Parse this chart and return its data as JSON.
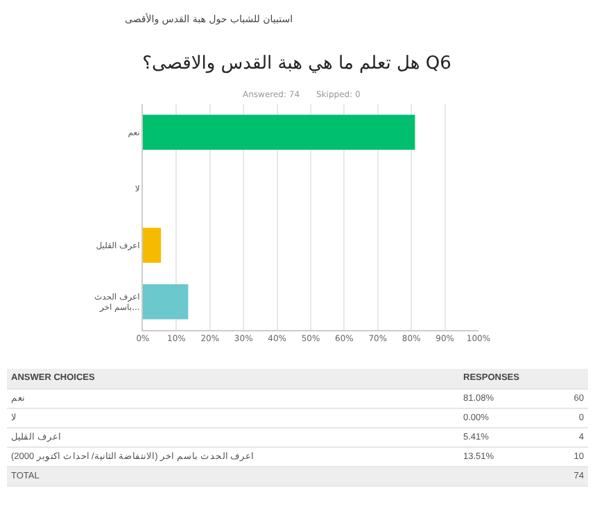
{
  "chart_data": {
    "type": "bar",
    "orientation": "horizontal",
    "title": "هل تعلم ما هي هبة القدس والاقصى؟ Q6",
    "categories": [
      "نعم",
      "لا",
      "اعرف القليل",
      "اعرف الحدث\nباسم اخر..."
    ],
    "values": [
      81.08,
      0,
      5.41,
      13.51
    ],
    "colors": [
      "#00bf6f",
      "#00bf6f",
      "#f6bb00",
      "#6bc8cd"
    ],
    "xlim": [
      0,
      100
    ],
    "xticks": [
      {
        "value": 0,
        "label": "0%"
      },
      {
        "value": 10,
        "label": "10%"
      },
      {
        "value": 20,
        "label": "20%"
      },
      {
        "value": 30,
        "label": "30%"
      },
      {
        "value": 40,
        "label": "40%"
      },
      {
        "value": 50,
        "label": "50%"
      },
      {
        "value": 60,
        "label": "60%"
      },
      {
        "value": 70,
        "label": "70%"
      },
      {
        "value": 80,
        "label": "80%"
      },
      {
        "value": 90,
        "label": "90%"
      },
      {
        "value": 100,
        "label": "100%"
      }
    ],
    "grid": "x",
    "annotations": [
      "استبيان للشباب حول هبة القدس والأقصى",
      "Answered: 74",
      "Skipped: 0",
      "ANSWER CHOICES",
      "RESPONSES",
      "اعرف الحدث باسم اخر (الانتفاضة الثانية/ احداث اكتوبر 2000)",
      "81.08%",
      "0.00%",
      "5.41%",
      "13.51%",
      "60",
      "0",
      "4",
      "10",
      "TOTAL",
      "74"
    ]
  }
}
